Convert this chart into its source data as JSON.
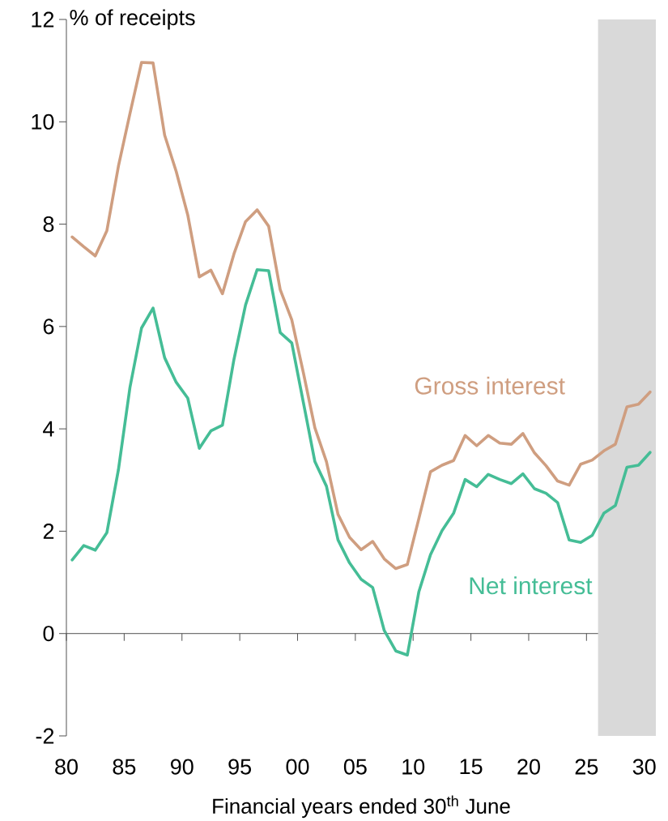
{
  "chart_data": {
    "type": "line",
    "ylabel": "% of receipts",
    "xlabel": "Financial years ended 30$^{th}$ June",
    "x": [
      1980.5,
      1981.5,
      1982.5,
      1983.5,
      1984.5,
      1985.5,
      1986.5,
      1987.5,
      1988.5,
      1989.5,
      1990.5,
      1991.5,
      1992.5,
      1993.5,
      1994.5,
      1995.5,
      1996.5,
      1997.5,
      1998.5,
      1999.5,
      2000.5,
      2001.5,
      2002.5,
      2003.5,
      2004.5,
      2005.5,
      2006.5,
      2007.5,
      2008.5,
      2009.5,
      2010.5,
      2011.5,
      2012.5,
      2013.5,
      2014.5,
      2015.5,
      2016.5,
      2017.5,
      2018.5,
      2019.5,
      2020.5,
      2021.5,
      2022.5,
      2023.5,
      2024.5,
      2025.5,
      2026.5,
      2027.5,
      2028.5,
      2029.5,
      2030.5
    ],
    "series": [
      {
        "name": "Gross interest",
        "color": "#cf9e80",
        "values": [
          7.75,
          7.56,
          7.38,
          7.87,
          9.13,
          10.16,
          11.16,
          11.15,
          9.74,
          9.03,
          8.18,
          6.97,
          7.1,
          6.64,
          7.42,
          8.05,
          8.28,
          7.96,
          6.72,
          6.13,
          5.1,
          4.02,
          3.36,
          2.33,
          1.88,
          1.64,
          1.8,
          1.46,
          1.27,
          1.35,
          2.25,
          3.16,
          3.29,
          3.38,
          3.87,
          3.67,
          3.87,
          3.72,
          3.7,
          3.91,
          3.53,
          3.28,
          2.98,
          2.9,
          3.31,
          3.39,
          3.57,
          3.7,
          4.43,
          4.48,
          4.72
        ]
      },
      {
        "name": "Net interest",
        "color": "#45bd96",
        "values": [
          1.44,
          1.72,
          1.63,
          1.97,
          3.2,
          4.81,
          5.97,
          6.36,
          5.39,
          4.91,
          4.6,
          3.62,
          3.96,
          4.07,
          5.36,
          6.42,
          7.11,
          7.09,
          5.88,
          5.68,
          4.52,
          3.36,
          2.88,
          1.83,
          1.38,
          1.06,
          0.9,
          0.06,
          -0.34,
          -0.42,
          0.82,
          1.54,
          2.01,
          2.35,
          3.01,
          2.87,
          3.11,
          3.01,
          2.93,
          3.12,
          2.83,
          2.74,
          2.56,
          1.83,
          1.78,
          1.92,
          2.35,
          2.5,
          3.25,
          3.29,
          3.54
        ]
      }
    ],
    "xlim": [
      1980,
      2031
    ],
    "xticks": [
      {
        "value": 1980,
        "label": "80"
      },
      {
        "value": 1985,
        "label": "85"
      },
      {
        "value": 1990,
        "label": "90"
      },
      {
        "value": 1995,
        "label": "95"
      },
      {
        "value": 2000,
        "label": "00"
      },
      {
        "value": 2005,
        "label": "05"
      },
      {
        "value": 2010,
        "label": "10"
      },
      {
        "value": 2015,
        "label": "15"
      },
      {
        "value": 2020,
        "label": "20"
      },
      {
        "value": 2025,
        "label": "25"
      },
      {
        "value": 2030,
        "label": "30"
      }
    ],
    "ylim": [
      -2,
      12
    ],
    "yticks": [
      -2,
      0,
      2,
      4,
      6,
      8,
      10,
      12
    ],
    "bands": [
      {
        "axis": "x",
        "from": 2026,
        "to": 2031,
        "color": "#d9d9d9"
      }
    ]
  }
}
